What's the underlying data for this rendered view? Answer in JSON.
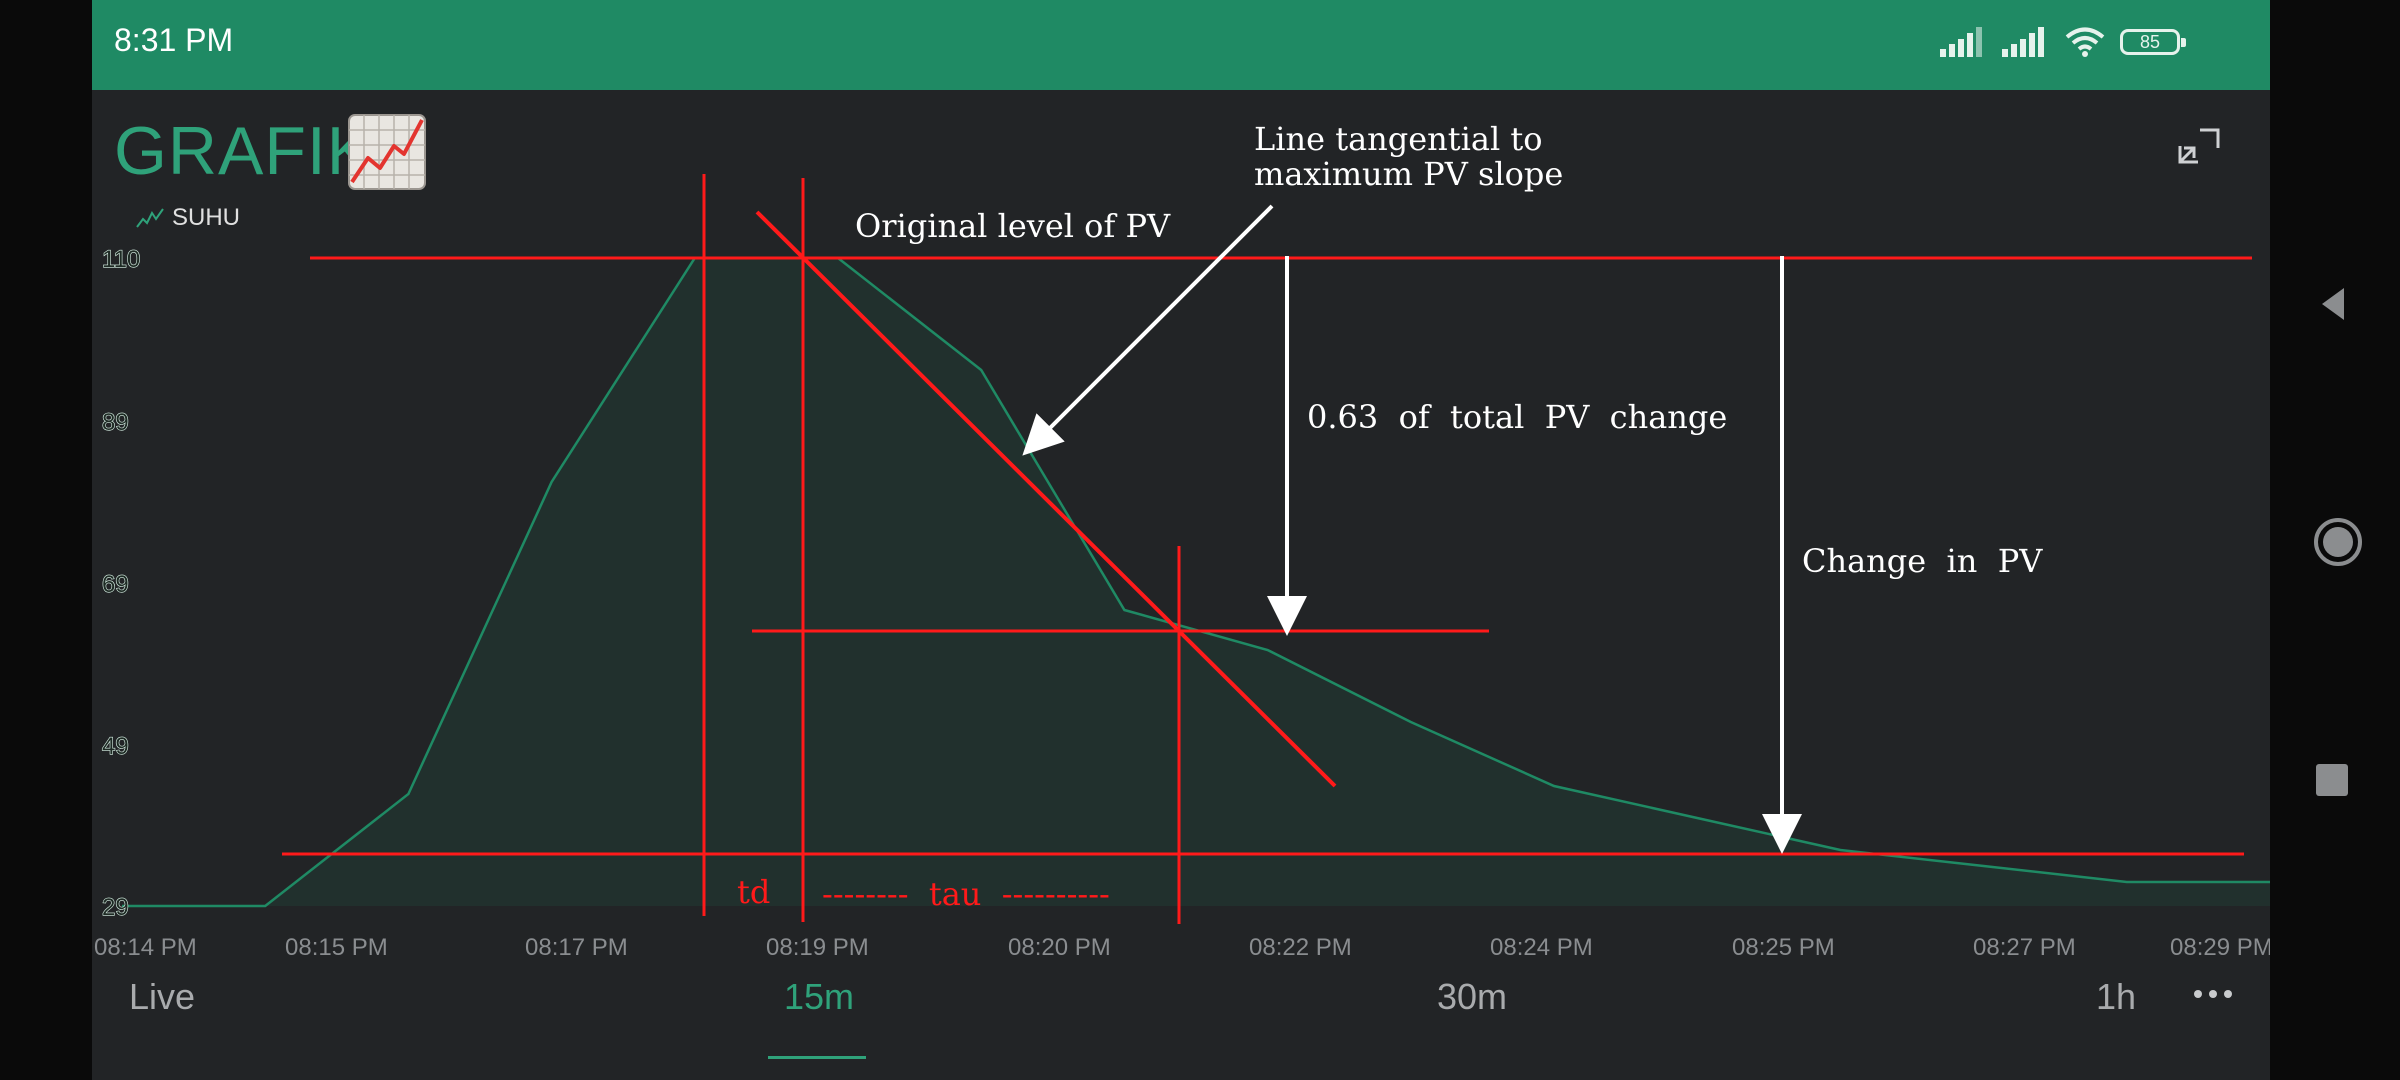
{
  "status": {
    "time": "8:31 PM",
    "battery": "85",
    "icons": [
      "signal-icon",
      "signal-icon",
      "wifi-icon",
      "battery-icon"
    ]
  },
  "header": {
    "title": "GRAFIK",
    "emoji_icon": "chart-increasing-icon",
    "expand_icon": "expand-icon"
  },
  "legend": {
    "series_label": "SUHU",
    "icon": "line-chart-icon"
  },
  "annotations": {
    "tangent_line": [
      "Line tangential to",
      "maximum PV slope"
    ],
    "original_level": "Original level of PV",
    "fraction_change": "0.63  of  total  PV  change",
    "change_in_pv": "Change  in  PV",
    "td": "td",
    "tau": "--------  tau  ----------"
  },
  "range_selector": {
    "options": [
      "Live",
      "15m",
      "30m",
      "1h"
    ],
    "selected": "15m",
    "more_icon": "more-horizontal-icon"
  },
  "colors": {
    "accent": "#2fa27a",
    "statusbar": "#1f8a64",
    "annotation_red": "#ff1a1a",
    "background": "#222426"
  },
  "chart_data": {
    "type": "area",
    "title": "",
    "xlabel": "",
    "ylabel": "",
    "x_tick_labels": [
      "08:14 PM",
      "08:15 PM",
      "08:17 PM",
      "08:19 PM",
      "08:20 PM",
      "08:22 PM",
      "08:24 PM",
      "08:25 PM",
      "08:27 PM",
      "08:29 PM"
    ],
    "y_tick_labels": [
      "110",
      "89",
      "69",
      "49",
      "29"
    ],
    "ylim": [
      29,
      110
    ],
    "series": [
      {
        "name": "SUHU",
        "x": [
          "08:14 PM",
          "08:15 PM",
          "08:16 PM",
          "08:17 PM",
          "08:18 PM",
          "08:19 PM",
          "08:20 PM",
          "08:21 PM",
          "08:22 PM",
          "08:23 PM",
          "08:24 PM",
          "08:25 PM",
          "08:26 PM",
          "08:27 PM",
          "08:28 PM",
          "08:29 PM"
        ],
        "values": [
          29,
          29,
          43,
          82,
          110,
          110,
          96,
          66,
          61,
          52,
          44,
          40,
          36,
          34,
          32,
          32
        ]
      }
    ],
    "reference_lines": {
      "original_level": 110,
      "final_level": 36,
      "level_063": 63
    }
  }
}
